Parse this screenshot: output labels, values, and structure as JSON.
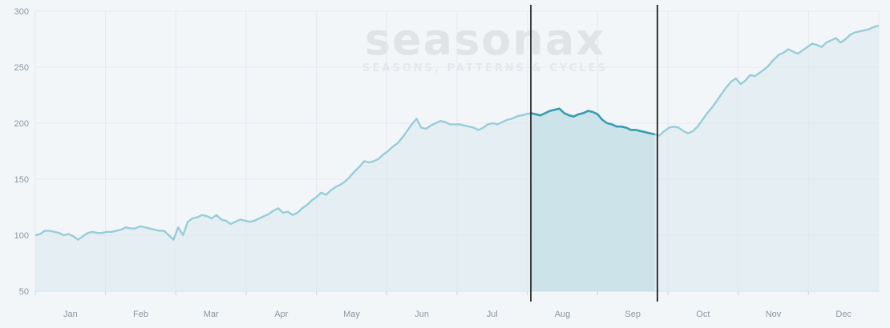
{
  "watermark": {
    "brand": "seasonax",
    "tagline": "SEASONS, PATTERNS & CYCLES"
  },
  "colors": {
    "line": "#97cdd8",
    "line_highlight": "#3a9db0",
    "area": "#d9e9ef",
    "area_highlight": "#c8e1e8",
    "grid": "#e4e9ee",
    "marker": "#1f1f1f",
    "background": "#f3f6f9"
  },
  "chart_data": {
    "type": "area",
    "title": "",
    "xlabel": "",
    "ylabel": "",
    "ylim": [
      50,
      300
    ],
    "y_ticks": [
      50,
      100,
      150,
      200,
      250,
      300
    ],
    "x_ticks": [
      "Jan",
      "Feb",
      "Mar",
      "Apr",
      "May",
      "Jun",
      "Jul",
      "Aug",
      "Sep",
      "Oct",
      "Nov",
      "Dec"
    ],
    "highlight_range": {
      "start": "Aug",
      "end": "late Sep"
    },
    "series": [
      {
        "values": [
          100,
          101,
          104,
          104,
          103,
          102,
          100,
          101,
          99,
          96,
          99,
          102,
          103,
          102,
          102,
          103,
          103,
          104,
          105,
          107,
          106,
          106,
          108,
          107,
          106,
          105,
          104,
          104,
          100,
          96,
          107,
          100,
          112,
          115,
          116,
          118,
          117,
          115,
          118,
          114,
          113,
          110,
          112,
          114,
          113,
          112,
          113,
          115,
          117,
          119,
          122,
          124,
          120,
          121,
          118,
          120,
          124,
          127,
          131,
          134,
          138,
          136,
          140,
          143,
          145,
          148,
          152,
          157,
          161,
          166,
          165,
          166,
          168,
          172,
          175,
          179,
          182,
          187,
          193,
          199,
          204,
          196,
          195,
          198,
          200,
          202,
          201,
          199,
          199,
          199,
          198,
          197,
          196,
          194,
          196,
          199,
          200,
          199,
          201,
          203,
          204,
          206,
          207,
          208,
          209,
          208,
          207,
          209,
          211,
          212,
          213,
          209,
          207,
          206,
          208,
          209,
          211,
          210,
          208,
          203,
          200,
          199,
          197,
          197,
          196,
          194,
          194,
          193,
          192,
          191,
          190,
          189,
          193,
          196,
          197,
          196,
          193,
          191,
          193,
          197,
          203,
          209,
          214,
          220,
          226,
          232,
          237,
          240,
          235,
          238,
          243,
          242,
          245,
          248,
          252,
          257,
          261,
          263,
          266,
          264,
          262,
          265,
          268,
          271,
          270,
          268,
          272,
          274,
          276,
          272,
          275,
          279,
          281,
          282,
          283,
          284,
          286,
          287
        ]
      }
    ]
  }
}
